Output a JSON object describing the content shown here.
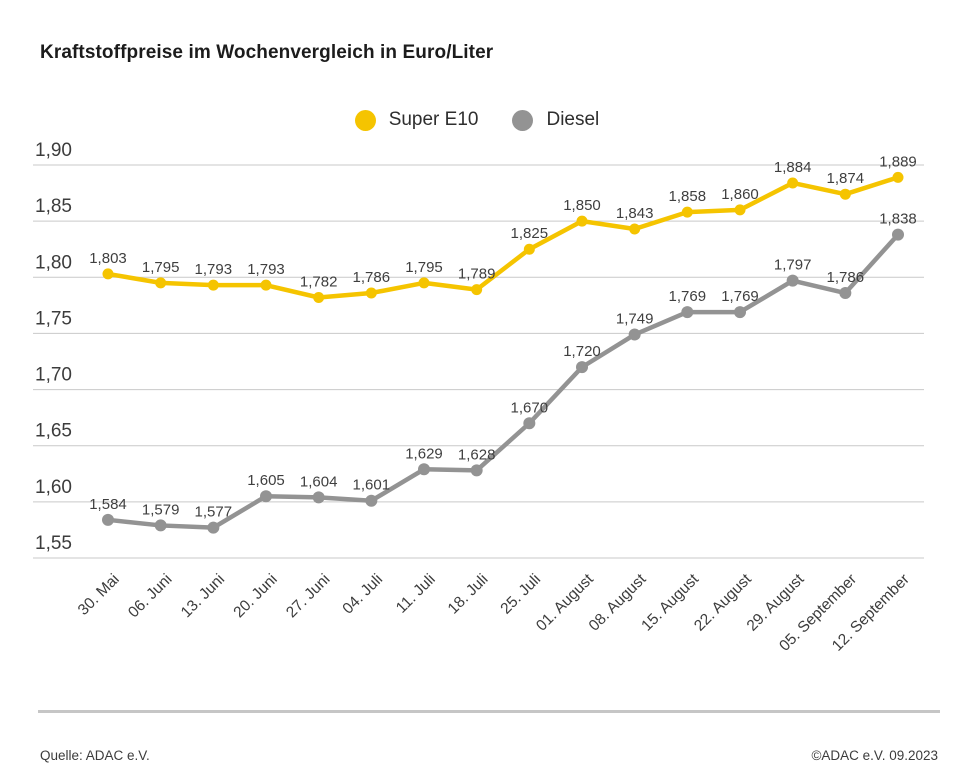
{
  "page": {
    "title": "Kraftstoffpreise im Wochenvergleich in Euro/Liter",
    "source_left": "Quelle: ADAC e.V.",
    "source_right": "©ADAC e.V. 09.2023"
  },
  "colors": {
    "super_e10": "#F5C400",
    "diesel": "#939393",
    "gridline": "#c9c9c9",
    "axis_text": "#3c3c3c",
    "point_label_text": "#3f3f3f"
  },
  "chart_data": {
    "type": "line",
    "title": "Kraftstoffpreise im Wochenvergleich in Euro/Liter",
    "categories": [
      "30. Mai",
      "06. Juni",
      "13. Juni",
      "20. Juni",
      "27. Juni",
      "04. Juli",
      "11. Juli",
      "18. Juli",
      "25. Juli",
      "01. August",
      "08. August",
      "15. August",
      "22. August",
      "29. August",
      "05. September",
      "12. September"
    ],
    "series": [
      {
        "name": "Super E10",
        "color": "#F5C400",
        "point_radius": 5.5,
        "values": [
          1.803,
          1.795,
          1.793,
          1.793,
          1.782,
          1.786,
          1.795,
          1.789,
          1.825,
          1.85,
          1.843,
          1.858,
          1.86,
          1.884,
          1.874,
          1.889
        ]
      },
      {
        "name": "Diesel",
        "color": "#939393",
        "point_radius": 6,
        "values": [
          1.584,
          1.579,
          1.577,
          1.605,
          1.604,
          1.601,
          1.629,
          1.628,
          1.67,
          1.72,
          1.749,
          1.769,
          1.769,
          1.797,
          1.786,
          1.838
        ]
      }
    ],
    "ylim": [
      1.55,
      1.9
    ],
    "y_ticks": [
      1.9,
      1.85,
      1.8,
      1.75,
      1.7,
      1.65,
      1.6,
      1.55
    ],
    "y_tick_labels": [
      "1,90",
      "1,85",
      "1,80",
      "1,75",
      "1,70",
      "1,65",
      "1,60",
      "1,55"
    ],
    "point_labels_visible": true,
    "point_label_format": "german-comma-3-decimals",
    "grid": true,
    "legend_position": "top-center"
  }
}
